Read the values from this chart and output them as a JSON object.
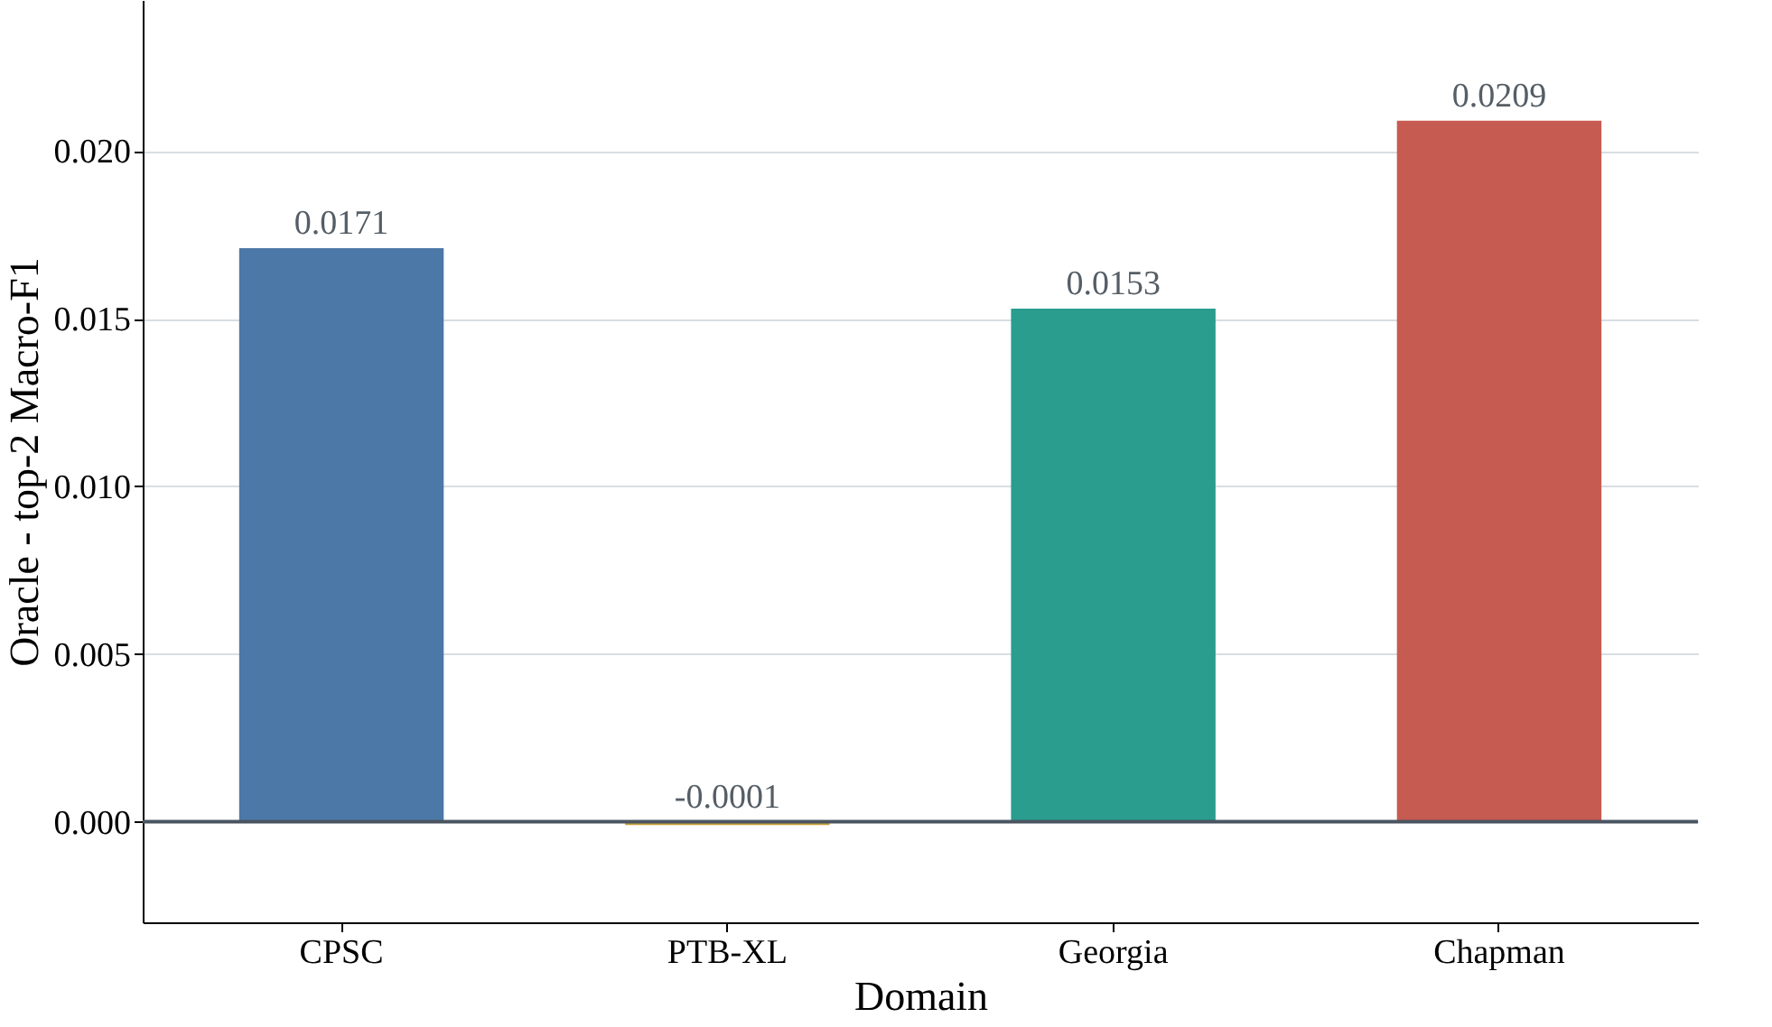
{
  "chart_data": {
    "type": "bar",
    "xlabel": "Domain",
    "ylabel": "Oracle - top-2 Macro-F1",
    "categories": [
      "CPSC",
      "PTB-XL",
      "Georgia",
      "Chapman"
    ],
    "values": [
      0.0171,
      -0.0001,
      0.0153,
      0.0209
    ],
    "colors": [
      "#4c78a8",
      "#c9a23a",
      "#2a9d8f",
      "#c65b52"
    ],
    "ylim": [
      -0.003,
      0.0245
    ],
    "yticks": [
      {
        "value": 0,
        "label": "0.000"
      },
      {
        "value": 0.005,
        "label": "0.005"
      },
      {
        "value": 0.01,
        "label": "0.010"
      },
      {
        "value": 0.015,
        "label": "0.015"
      },
      {
        "value": 0.02,
        "label": "0.020"
      }
    ],
    "grid": "y",
    "data_labels": true,
    "ref_lines": [
      {
        "axis": "y",
        "value": 0,
        "color": "#4a5560"
      }
    ]
  }
}
